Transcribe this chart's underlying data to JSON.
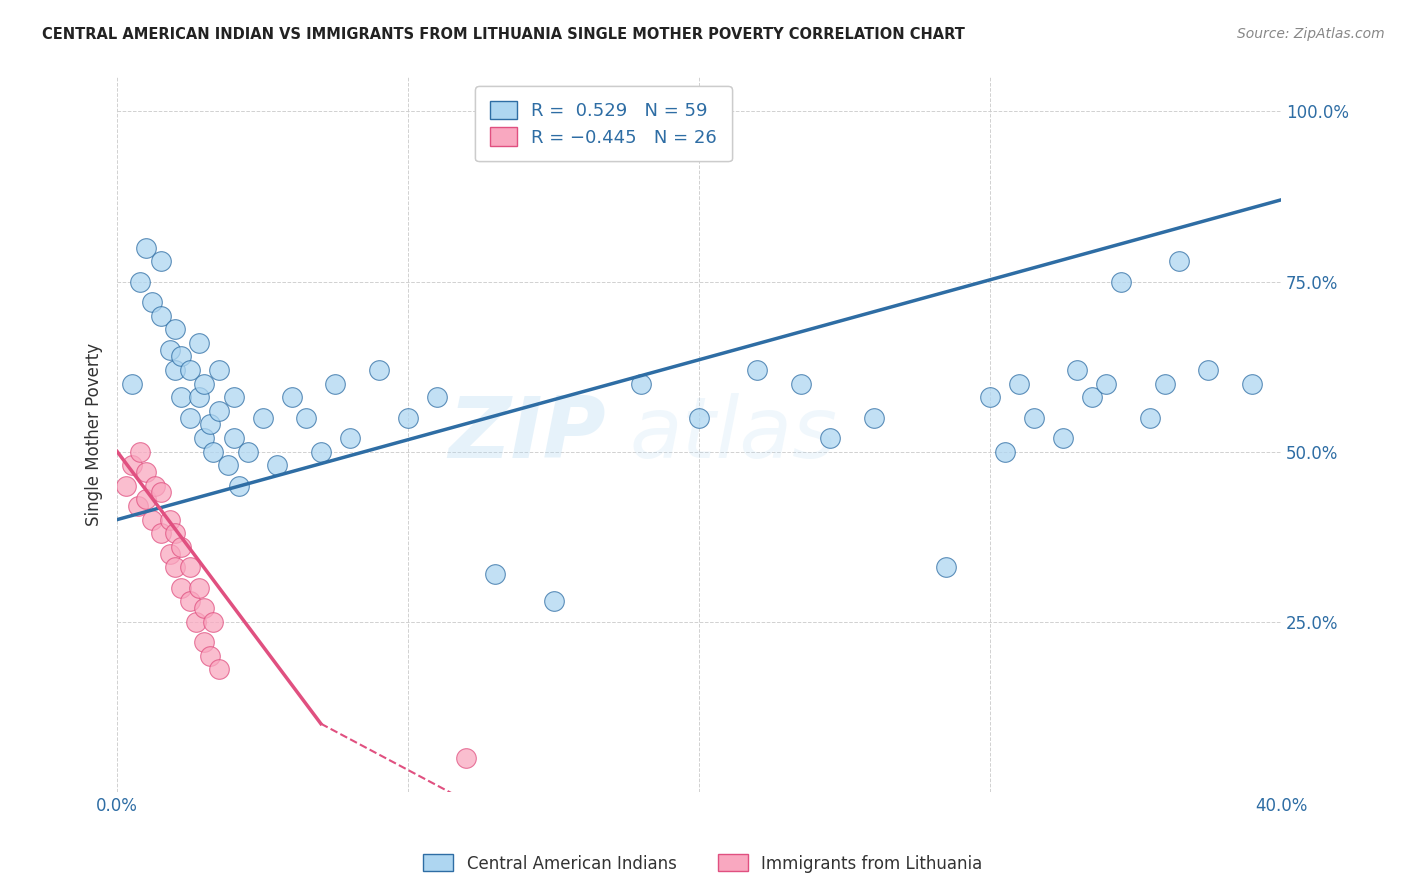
{
  "title": "CENTRAL AMERICAN INDIAN VS IMMIGRANTS FROM LITHUANIA SINGLE MOTHER POVERTY CORRELATION CHART",
  "source": "Source: ZipAtlas.com",
  "ylabel": "Single Mother Poverty",
  "xlim": [
    0.0,
    0.4
  ],
  "ylim": [
    0.0,
    1.05
  ],
  "x_tick_positions": [
    0.0,
    0.1,
    0.2,
    0.3,
    0.4
  ],
  "x_tick_labels": [
    "0.0%",
    "",
    "",
    "",
    "40.0%"
  ],
  "y_tick_positions": [
    0.0,
    0.25,
    0.5,
    0.75,
    1.0
  ],
  "y_tick_labels": [
    "",
    "25.0%",
    "50.0%",
    "75.0%",
    "100.0%"
  ],
  "R_blue": 0.529,
  "N_blue": 59,
  "R_pink": -0.445,
  "N_pink": 26,
  "color_blue": "#AED6F1",
  "color_pink": "#F9A8C0",
  "line_blue": "#2E6DA4",
  "line_pink": "#E05080",
  "legend_label_blue": "Central American Indians",
  "legend_label_pink": "Immigrants from Lithuania",
  "blue_x": [
    0.005,
    0.008,
    0.01,
    0.012,
    0.015,
    0.015,
    0.018,
    0.02,
    0.02,
    0.022,
    0.022,
    0.025,
    0.025,
    0.028,
    0.028,
    0.03,
    0.03,
    0.032,
    0.033,
    0.035,
    0.035,
    0.038,
    0.04,
    0.04,
    0.042,
    0.045,
    0.05,
    0.055,
    0.06,
    0.065,
    0.07,
    0.075,
    0.08,
    0.09,
    0.1,
    0.11,
    0.13,
    0.15,
    0.18,
    0.2,
    0.22,
    0.235,
    0.245,
    0.26,
    0.285,
    0.3,
    0.305,
    0.31,
    0.315,
    0.325,
    0.33,
    0.335,
    0.34,
    0.345,
    0.355,
    0.36,
    0.365,
    0.375,
    0.39
  ],
  "blue_y": [
    0.6,
    0.75,
    0.8,
    0.72,
    0.7,
    0.78,
    0.65,
    0.62,
    0.68,
    0.58,
    0.64,
    0.55,
    0.62,
    0.58,
    0.66,
    0.52,
    0.6,
    0.54,
    0.5,
    0.56,
    0.62,
    0.48,
    0.52,
    0.58,
    0.45,
    0.5,
    0.55,
    0.48,
    0.58,
    0.55,
    0.5,
    0.6,
    0.52,
    0.62,
    0.55,
    0.58,
    0.32,
    0.28,
    0.6,
    0.55,
    0.62,
    0.6,
    0.52,
    0.55,
    0.33,
    0.58,
    0.5,
    0.6,
    0.55,
    0.52,
    0.62,
    0.58,
    0.6,
    0.75,
    0.55,
    0.6,
    0.78,
    0.62,
    0.6
  ],
  "pink_x": [
    0.003,
    0.005,
    0.007,
    0.008,
    0.01,
    0.01,
    0.012,
    0.013,
    0.015,
    0.015,
    0.018,
    0.018,
    0.02,
    0.02,
    0.022,
    0.022,
    0.025,
    0.025,
    0.027,
    0.028,
    0.03,
    0.03,
    0.032,
    0.033,
    0.035,
    0.12
  ],
  "pink_y": [
    0.45,
    0.48,
    0.42,
    0.5,
    0.43,
    0.47,
    0.4,
    0.45,
    0.38,
    0.44,
    0.35,
    0.4,
    0.33,
    0.38,
    0.3,
    0.36,
    0.28,
    0.33,
    0.25,
    0.3,
    0.22,
    0.27,
    0.2,
    0.25,
    0.18,
    0.05
  ],
  "watermark_zip": "ZIP",
  "watermark_atlas": "atlas",
  "background_color": "#FFFFFF",
  "grid_color": "#CCCCCC"
}
